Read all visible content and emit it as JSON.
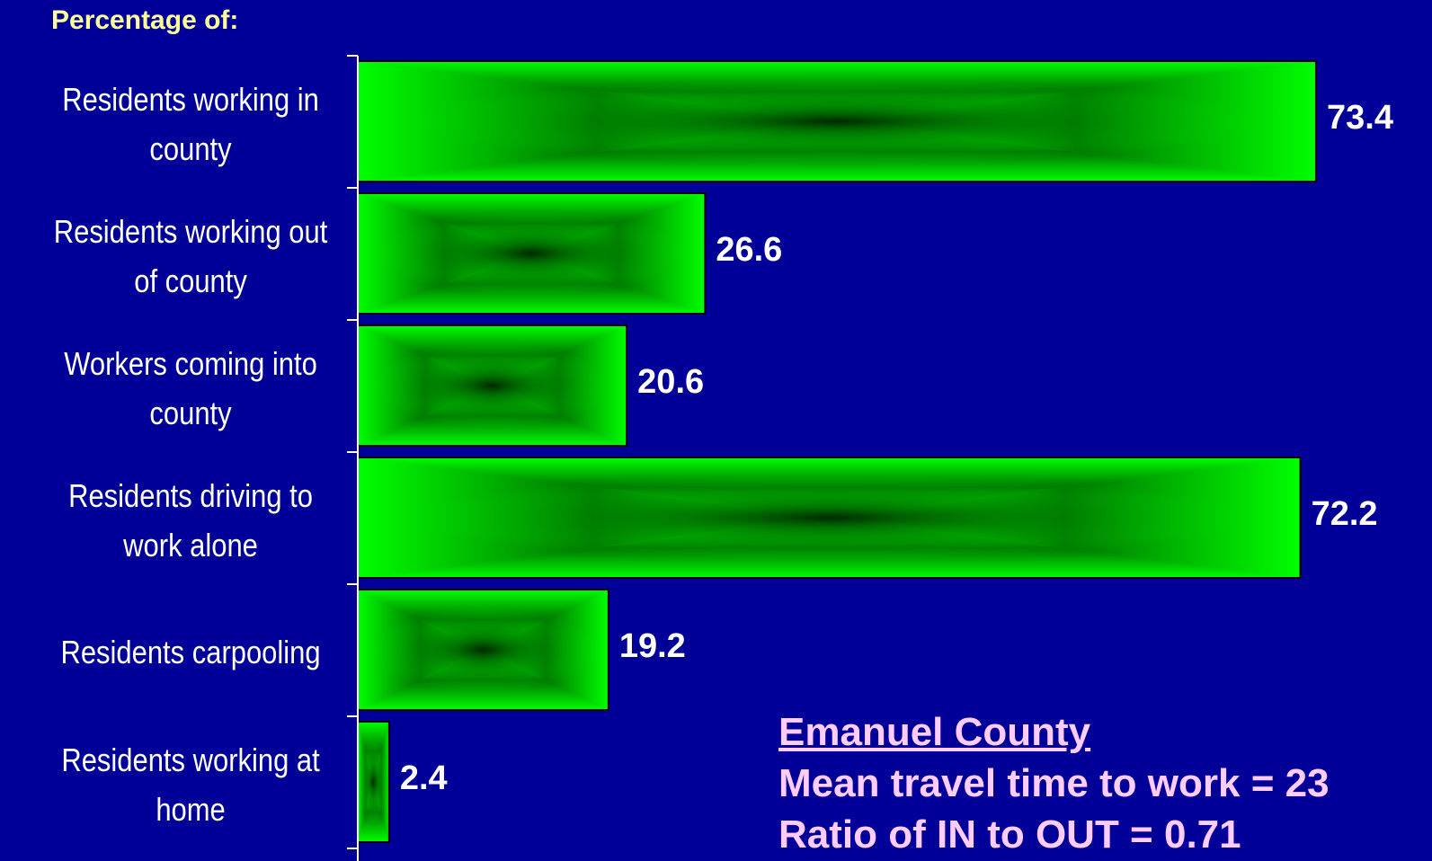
{
  "subtitle": "Percentage of:",
  "colors": {
    "background": "#000099",
    "bar_fill": "#00FF00",
    "bar_center": "#000000",
    "label_text": "#FFFFFF",
    "subtitle_text": "#FFFF99",
    "info_text": "#FFCCFF"
  },
  "info": {
    "title": "Emanuel County",
    "line1": "Mean travel time to work = 23",
    "line2": "Ratio of IN to OUT = 0.71"
  },
  "chart_data": {
    "type": "bar",
    "orientation": "horizontal",
    "categories": [
      "Residents working in county",
      "Residents working out of county",
      "Workers coming into county",
      "Residents driving to work alone",
      "Residents carpooling",
      "Residents working at home"
    ],
    "values": [
      73.4,
      26.6,
      20.6,
      72.2,
      19.2,
      2.4
    ],
    "value_labels": [
      "73.4",
      "26.6",
      "20.6",
      "72.2",
      "19.2",
      "2.4"
    ],
    "xlim": [
      0,
      73.4
    ],
    "grid": false,
    "legend": "none"
  }
}
